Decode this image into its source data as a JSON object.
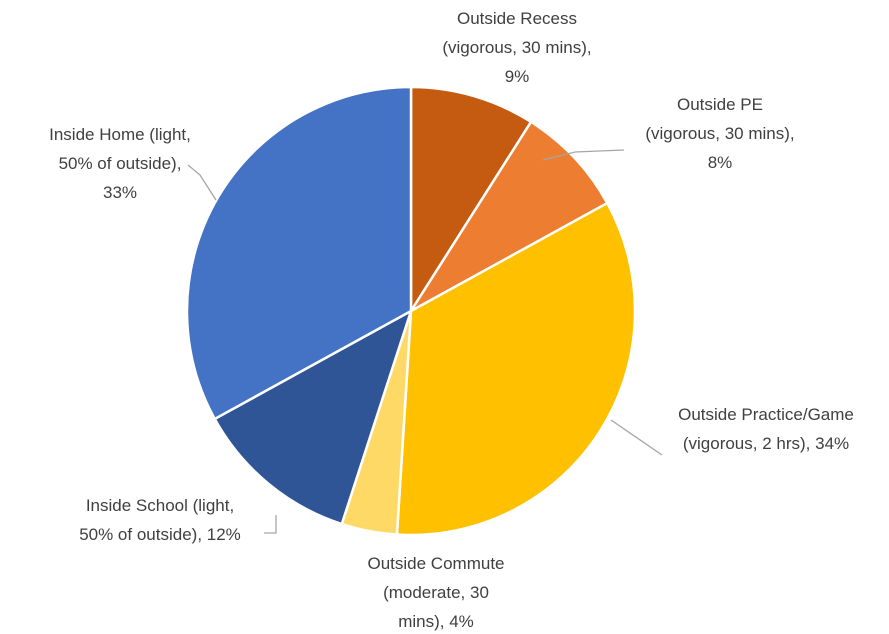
{
  "chart_data": {
    "type": "pie",
    "title": "",
    "start_angle_deg": 0,
    "direction": "clockwise",
    "slices": [
      {
        "label": "Outside Recess (vigorous, 30 mins), 9%",
        "lines": [
          "Outside Recess",
          "(vigorous, 30 mins),",
          "9%"
        ],
        "value": 9,
        "color": "#c55a11"
      },
      {
        "label": "Outside PE (vigorous, 30 mins), 8%",
        "lines": [
          "Outside PE",
          "(vigorous, 30 mins),",
          "8%"
        ],
        "value": 8,
        "color": "#ed7d31"
      },
      {
        "label": "Outside Practice/Game (vigorous, 2 hrs), 34%",
        "lines": [
          "Outside Practice/Game",
          "(vigorous, 2 hrs), 34%"
        ],
        "value": 34,
        "color": "#ffc000"
      },
      {
        "label": "Outside Commute (moderate, 30 mins), 4%",
        "lines": [
          "Outside Commute",
          "(moderate, 30",
          "mins), 4%"
        ],
        "value": 4,
        "color": "#ffd966"
      },
      {
        "label": "Inside School (light, 50% of outside), 12%",
        "lines": [
          "Inside School (light,",
          "50% of outside), 12%"
        ],
        "value": 12,
        "color": "#2f5597"
      },
      {
        "label": "Inside Home (light, 50% of outside), 33%",
        "lines": [
          "Inside Home (light,",
          "50% of outside),",
          "33%"
        ],
        "value": 33,
        "color": "#4472c4"
      }
    ]
  }
}
